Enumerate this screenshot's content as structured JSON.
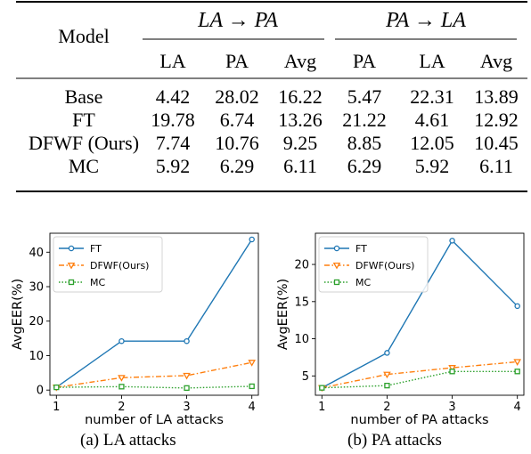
{
  "table": {
    "model_header": "Model",
    "group_headers": [
      "LA → PA",
      "PA → LA"
    ],
    "sub_headers": [
      "LA",
      "PA",
      "Avg",
      "PA",
      "LA",
      "Avg"
    ],
    "rows": [
      {
        "model": "Base",
        "values": [
          "4.42",
          "28.02",
          "16.22",
          "5.47",
          "22.31",
          "13.89"
        ]
      },
      {
        "model": "FT",
        "values": [
          "19.78",
          "6.74",
          "13.26",
          "21.22",
          "4.61",
          "12.92"
        ]
      },
      {
        "model": "DFWF (Ours)",
        "values": [
          "7.74",
          "10.76",
          "9.25",
          "8.85",
          "12.05",
          "10.45"
        ]
      },
      {
        "model": "MC",
        "values": [
          "5.92",
          "6.29",
          "6.11",
          "6.29",
          "5.92",
          "6.11"
        ]
      }
    ]
  },
  "chart_data": [
    {
      "type": "line",
      "xlabel": "number of LA attacks",
      "ylabel": "AvgEER(%)",
      "x": [
        1,
        2,
        3,
        4
      ],
      "xticks": [
        "1",
        "2",
        "3",
        "4"
      ],
      "yticks": [
        "0",
        "10",
        "20",
        "30",
        "40"
      ],
      "xlim": [
        0.9,
        4.1
      ],
      "ylim": [
        -1.5,
        45.5
      ],
      "legend": "top-left",
      "grid": false,
      "caption": "(a) LA attacks",
      "series": [
        {
          "name": "FT",
          "values": [
            0.8,
            14.2,
            14.2,
            43.7
          ],
          "color": "#1f77b4",
          "style": "solid",
          "marker": "circle"
        },
        {
          "name": "DFWF(Ours)",
          "values": [
            0.8,
            3.6,
            4.2,
            8.0
          ],
          "color": "#ff7f0e",
          "style": "dashdot",
          "marker": "triangle-down"
        },
        {
          "name": "MC",
          "values": [
            0.8,
            1.0,
            0.6,
            1.1
          ],
          "color": "#2ca02c",
          "style": "dotted",
          "marker": "square"
        }
      ]
    },
    {
      "type": "line",
      "xlabel": "number of PA attacks",
      "ylabel": "AvgEER(%)",
      "x": [
        1,
        2,
        3,
        4
      ],
      "xticks": [
        "1",
        "2",
        "3",
        "4"
      ],
      "yticks": [
        "5",
        "10",
        "15",
        "20"
      ],
      "xlim": [
        0.9,
        4.1
      ],
      "ylim": [
        2.4,
        24.2
      ],
      "legend": "top-left",
      "grid": false,
      "caption": "(b) PA attacks",
      "series": [
        {
          "name": "FT",
          "values": [
            3.4,
            8.1,
            23.2,
            14.4
          ],
          "color": "#1f77b4",
          "style": "solid",
          "marker": "circle"
        },
        {
          "name": "DFWF(Ours)",
          "values": [
            3.4,
            5.2,
            6.1,
            6.9
          ],
          "color": "#ff7f0e",
          "style": "dashdot",
          "marker": "triangle-down"
        },
        {
          "name": "MC",
          "values": [
            3.4,
            3.7,
            5.6,
            5.6
          ],
          "color": "#2ca02c",
          "style": "dotted",
          "marker": "square"
        }
      ]
    }
  ]
}
